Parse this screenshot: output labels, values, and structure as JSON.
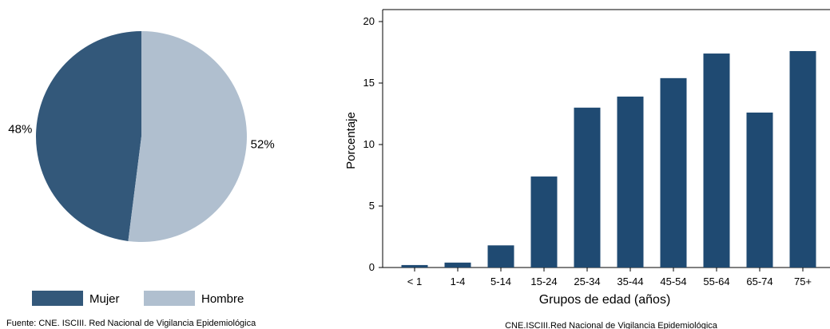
{
  "chart_data": [
    {
      "type": "pie",
      "categories": [
        "Mujer",
        "Hombre"
      ],
      "values": [
        48,
        52
      ],
      "slice_labels": [
        "48%",
        "52%"
      ],
      "colors": [
        "#33587a",
        "#b0bfcf"
      ],
      "legend": {
        "placement": "bottom",
        "entries": [
          "Mujer",
          "Hombre"
        ]
      },
      "source": "Fuente: CNE. ISCIII. Red Nacional de Vigilancia Epidemiológica"
    },
    {
      "type": "bar",
      "categories": [
        "< 1",
        "1-4",
        "5-14",
        "15-24",
        "25-34",
        "35-44",
        "45-54",
        "55-64",
        "65-74",
        "75+"
      ],
      "values": [
        0.2,
        0.4,
        1.8,
        7.4,
        13.0,
        13.9,
        15.4,
        17.4,
        12.6,
        17.6
      ],
      "color": "#1f4a72",
      "xlabel": "Grupos de edad (años)",
      "ylabel": "Porcentaje",
      "ylim": [
        0,
        20
      ],
      "yticks": [
        "0",
        "5",
        "10",
        "15",
        "20"
      ],
      "grid": false,
      "source": "CNE.ISCIII.Red Nacional de Vigilancia Epidemiológica"
    }
  ]
}
